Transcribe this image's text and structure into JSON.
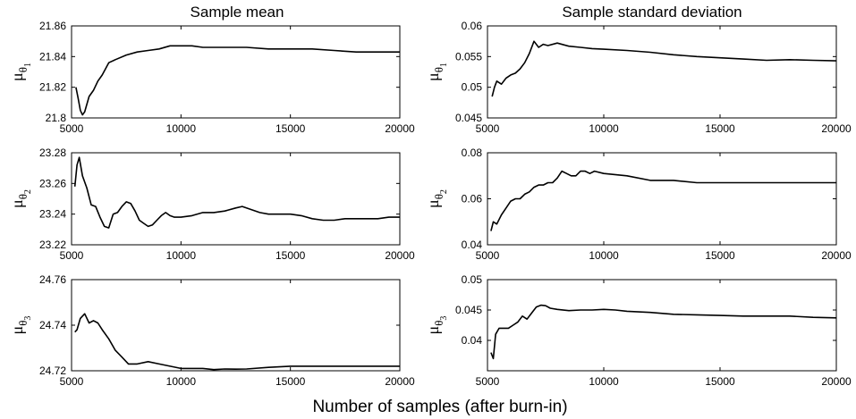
{
  "figure": {
    "col_titles": [
      "Sample mean",
      "Sample standard deviation"
    ],
    "xlabel": "Number of samples (after burn-in)"
  },
  "chart_data": [
    {
      "type": "line",
      "row": 0,
      "col": 0,
      "ylabel": {
        "main": "μ",
        "sub": "θ",
        "subsub": "1"
      },
      "xlim": [
        5000,
        20000
      ],
      "ylim": [
        21.8,
        21.86
      ],
      "xticks": [
        5000,
        10000,
        15000,
        20000
      ],
      "yticks": [
        21.8,
        21.82,
        21.84,
        21.86
      ],
      "ytick_labels": [
        "21.8",
        "21.82",
        "21.84",
        "21.86"
      ],
      "series": [
        {
          "x": [
            5200,
            5300,
            5400,
            5500,
            5600,
            5800,
            6000,
            6200,
            6400,
            6700,
            7000,
            7500,
            8000,
            8500,
            9000,
            9500,
            10000,
            10500,
            11000,
            12000,
            13000,
            14000,
            15000,
            16000,
            17000,
            18000,
            19000,
            20000
          ],
          "values": [
            21.82,
            21.813,
            21.805,
            21.802,
            21.804,
            21.814,
            21.818,
            21.824,
            21.828,
            21.836,
            21.838,
            21.841,
            21.843,
            21.844,
            21.845,
            21.847,
            21.847,
            21.847,
            21.846,
            21.846,
            21.846,
            21.845,
            21.845,
            21.845,
            21.844,
            21.843,
            21.843,
            21.843
          ]
        }
      ]
    },
    {
      "type": "line",
      "row": 0,
      "col": 1,
      "ylabel": {
        "main": "μ",
        "sub": "θ",
        "subsub": "1"
      },
      "xlim": [
        5000,
        20000
      ],
      "ylim": [
        0.045,
        0.06
      ],
      "xticks": [
        5000,
        10000,
        15000,
        20000
      ],
      "yticks": [
        0.045,
        0.05,
        0.055,
        0.06
      ],
      "ytick_labels": [
        "0.045",
        "0.05",
        "0.055",
        "0.06"
      ],
      "series": [
        {
          "x": [
            5200,
            5300,
            5400,
            5600,
            5800,
            6000,
            6200,
            6400,
            6600,
            6800,
            7000,
            7200,
            7400,
            7600,
            8000,
            8500,
            9000,
            9500,
            10000,
            11000,
            12000,
            13000,
            14000,
            15000,
            16000,
            17000,
            18000,
            19000,
            20000
          ],
          "values": [
            0.0485,
            0.05,
            0.051,
            0.0505,
            0.0515,
            0.052,
            0.0523,
            0.053,
            0.054,
            0.0555,
            0.0575,
            0.0565,
            0.057,
            0.0568,
            0.0572,
            0.0567,
            0.0565,
            0.0563,
            0.0562,
            0.056,
            0.0557,
            0.0553,
            0.055,
            0.0548,
            0.0546,
            0.0544,
            0.0545,
            0.0544,
            0.0543
          ]
        }
      ]
    },
    {
      "type": "line",
      "row": 1,
      "col": 0,
      "ylabel": {
        "main": "μ",
        "sub": "θ",
        "subsub": "2"
      },
      "xlim": [
        5000,
        20000
      ],
      "ylim": [
        23.22,
        23.28
      ],
      "xticks": [
        5000,
        10000,
        15000,
        20000
      ],
      "yticks": [
        23.22,
        23.24,
        23.26,
        23.28
      ],
      "ytick_labels": [
        "23.22",
        "23.24",
        "23.26",
        "23.28"
      ],
      "series": [
        {
          "x": [
            5150,
            5250,
            5350,
            5500,
            5700,
            5900,
            6100,
            6300,
            6500,
            6700,
            6900,
            7100,
            7300,
            7500,
            7700,
            7900,
            8100,
            8300,
            8500,
            8700,
            8900,
            9100,
            9300,
            9500,
            9700,
            10000,
            10500,
            11000,
            11500,
            12000,
            12500,
            12800,
            13200,
            13600,
            14000,
            14500,
            15000,
            15500,
            16000,
            16500,
            17000,
            17500,
            18000,
            18500,
            19000,
            19500,
            20000
          ],
          "values": [
            23.258,
            23.272,
            23.277,
            23.265,
            23.257,
            23.246,
            23.245,
            23.238,
            23.232,
            23.231,
            23.24,
            23.241,
            23.245,
            23.248,
            23.247,
            23.242,
            23.236,
            23.234,
            23.232,
            23.233,
            23.236,
            23.239,
            23.241,
            23.239,
            23.238,
            23.238,
            23.239,
            23.241,
            23.241,
            23.242,
            23.244,
            23.245,
            23.243,
            23.241,
            23.24,
            23.24,
            23.24,
            23.239,
            23.237,
            23.236,
            23.236,
            23.237,
            23.237,
            23.237,
            23.237,
            23.238,
            23.238
          ]
        }
      ]
    },
    {
      "type": "line",
      "row": 1,
      "col": 1,
      "ylabel": {
        "main": "μ",
        "sub": "θ",
        "subsub": "2"
      },
      "xlim": [
        5000,
        20000
      ],
      "ylim": [
        0.04,
        0.08
      ],
      "xticks": [
        5000,
        10000,
        15000,
        20000
      ],
      "yticks": [
        0.04,
        0.06,
        0.08
      ],
      "ytick_labels": [
        "0.04",
        "0.06",
        "0.08"
      ],
      "series": [
        {
          "x": [
            5150,
            5250,
            5400,
            5600,
            5800,
            6000,
            6200,
            6400,
            6600,
            6800,
            7000,
            7200,
            7400,
            7600,
            7800,
            8000,
            8200,
            8400,
            8600,
            8800,
            9000,
            9200,
            9400,
            9600,
            10000,
            11000,
            12000,
            13000,
            14000,
            15000,
            16000,
            17000,
            18000,
            19000,
            20000
          ],
          "values": [
            0.046,
            0.05,
            0.049,
            0.053,
            0.056,
            0.059,
            0.06,
            0.06,
            0.062,
            0.063,
            0.065,
            0.066,
            0.066,
            0.067,
            0.067,
            0.069,
            0.072,
            0.071,
            0.07,
            0.07,
            0.072,
            0.072,
            0.071,
            0.072,
            0.071,
            0.07,
            0.068,
            0.068,
            0.067,
            0.067,
            0.067,
            0.067,
            0.067,
            0.067,
            0.067
          ]
        }
      ]
    },
    {
      "type": "line",
      "row": 2,
      "col": 0,
      "ylabel": {
        "main": "μ",
        "sub": "θ",
        "subsub": "3"
      },
      "xlim": [
        5000,
        20000
      ],
      "ylim": [
        24.72,
        24.76
      ],
      "xticks": [
        5000,
        10000,
        15000,
        20000
      ],
      "yticks": [
        24.72,
        24.74,
        24.76
      ],
      "ytick_labels": [
        "24.72",
        "24.74",
        "24.76"
      ],
      "series": [
        {
          "x": [
            5150,
            5250,
            5400,
            5600,
            5800,
            6000,
            6200,
            6400,
            6700,
            7000,
            7300,
            7600,
            8000,
            8500,
            9000,
            9500,
            10000,
            10500,
            11000,
            11500,
            12000,
            12500,
            13000,
            14000,
            15000,
            16000,
            17000,
            18000,
            19000,
            20000
          ],
          "values": [
            24.737,
            24.738,
            24.743,
            24.745,
            24.741,
            24.742,
            24.741,
            24.738,
            24.734,
            24.729,
            24.726,
            24.723,
            24.723,
            24.724,
            24.723,
            24.722,
            24.721,
            24.721,
            24.721,
            24.7205,
            24.7208,
            24.7207,
            24.7208,
            24.7215,
            24.722,
            24.722,
            24.722,
            24.722,
            24.722,
            24.722
          ]
        }
      ]
    },
    {
      "type": "line",
      "row": 2,
      "col": 1,
      "ylabel": {
        "main": "μ",
        "sub": "θ",
        "subsub": "3"
      },
      "xlim": [
        5000,
        20000
      ],
      "ylim": [
        0.035,
        0.05
      ],
      "xticks": [
        5000,
        10000,
        15000,
        20000
      ],
      "yticks": [
        0.04,
        0.045,
        0.05
      ],
      "ytick_labels": [
        "0.04",
        "0.045",
        "0.05"
      ],
      "series": [
        {
          "x": [
            5150,
            5250,
            5350,
            5500,
            5700,
            5900,
            6100,
            6300,
            6500,
            6700,
            6900,
            7100,
            7300,
            7500,
            7700,
            8000,
            8500,
            9000,
            9500,
            10000,
            10500,
            11000,
            12000,
            13000,
            14000,
            15000,
            16000,
            17000,
            18000,
            19000,
            20000
          ],
          "values": [
            0.038,
            0.037,
            0.041,
            0.042,
            0.042,
            0.042,
            0.0425,
            0.043,
            0.044,
            0.0435,
            0.0445,
            0.0455,
            0.0458,
            0.0457,
            0.0453,
            0.0451,
            0.0449,
            0.045,
            0.045,
            0.0451,
            0.045,
            0.0448,
            0.0446,
            0.0443,
            0.0442,
            0.0441,
            0.044,
            0.044,
            0.044,
            0.0438,
            0.0437
          ]
        }
      ]
    }
  ]
}
